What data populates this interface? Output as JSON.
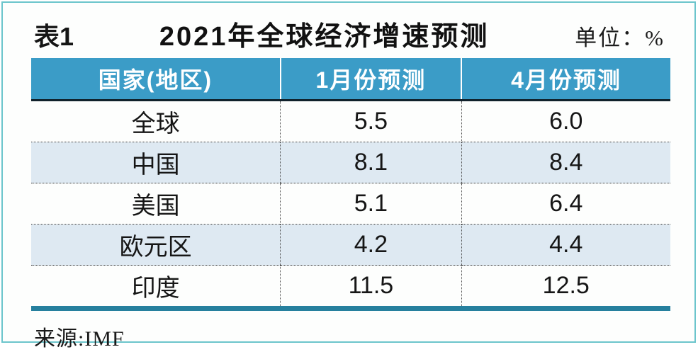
{
  "title": {
    "table_label": "表1",
    "text": "2021年全球经济增速预测",
    "unit": "单位：%"
  },
  "table": {
    "columns": [
      "国家(地区)",
      "1月份预测",
      "4月份预测"
    ],
    "rows": [
      {
        "country": "全球",
        "jan": "5.5",
        "apr": "6.0"
      },
      {
        "country": "中国",
        "jan": "8.1",
        "apr": "8.4"
      },
      {
        "country": "美国",
        "jan": "5.1",
        "apr": "6.4"
      },
      {
        "country": "欧元区",
        "jan": "4.2",
        "apr": "4.4"
      },
      {
        "country": "印度",
        "jan": "11.5",
        "apr": "12.5"
      }
    ]
  },
  "source": "来源:IMF",
  "colors": {
    "header_bg": "#3b9cc7",
    "header_text": "#ffffff",
    "alt_row_bg": "#dee9f2",
    "bottom_rule": "#26809e",
    "frame_border": "#6cc5cc"
  },
  "chart_data": {
    "type": "table",
    "table_label": "表1",
    "title": "2021年全球经济增速预测",
    "unit": "%",
    "columns": [
      "国家(地区)",
      "1月份预测",
      "4月份预测"
    ],
    "categories": [
      "全球",
      "中国",
      "美国",
      "欧元区",
      "印度"
    ],
    "series": [
      {
        "name": "1月份预测",
        "values": [
          5.5,
          8.1,
          5.1,
          4.2,
          11.5
        ]
      },
      {
        "name": "4月份预测",
        "values": [
          6.0,
          8.4,
          6.4,
          4.4,
          12.5
        ]
      }
    ],
    "source": "IMF"
  }
}
